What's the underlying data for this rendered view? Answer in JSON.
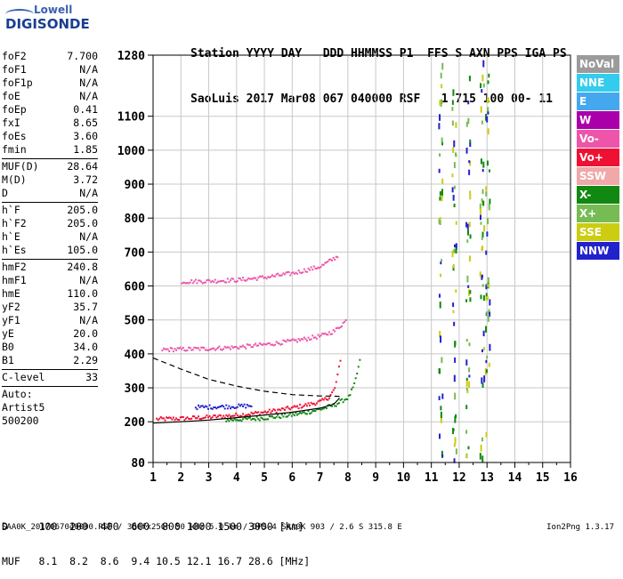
{
  "logo": {
    "line1": "Lowell",
    "line2": "DIGISONDE"
  },
  "header": {
    "line1": "Station YYYY DAY   DDD HHMMSS P1  FFS S AXN PPS IGA PS",
    "line2": "SaoLuis 2017 Mar08 067 040000 RSF   1 715 100 00- 11"
  },
  "params": {
    "group1": [
      {
        "label": "foF2",
        "value": "7.700"
      },
      {
        "label": "foF1",
        "value": "N/A"
      },
      {
        "label": "foF1p",
        "value": "N/A"
      },
      {
        "label": "foE",
        "value": "N/A"
      },
      {
        "label": "foEp",
        "value": "0.41"
      },
      {
        "label": "fxI",
        "value": "8.65"
      },
      {
        "label": "foEs",
        "value": "3.60"
      },
      {
        "label": "fmin",
        "value": "1.85"
      }
    ],
    "group2": [
      {
        "label": "MUF(D)",
        "value": "28.64"
      },
      {
        "label": "M(D)",
        "value": "3.72"
      },
      {
        "label": "D",
        "value": "N/A"
      }
    ],
    "group3": [
      {
        "label": "h`F",
        "value": "205.0"
      },
      {
        "label": "h`F2",
        "value": "205.0"
      },
      {
        "label": "h`E",
        "value": "N/A"
      },
      {
        "label": "h`Es",
        "value": "105.0"
      }
    ],
    "group4": [
      {
        "label": "hmF2",
        "value": "240.8"
      },
      {
        "label": "hmF1",
        "value": "N/A"
      },
      {
        "label": "hmE",
        "value": "110.0"
      },
      {
        "label": "yF2",
        "value": "35.7"
      },
      {
        "label": "yF1",
        "value": "N/A"
      },
      {
        "label": "yE",
        "value": "20.0"
      },
      {
        "label": "B0",
        "value": "34.0"
      },
      {
        "label": "B1",
        "value": "2.29"
      }
    ],
    "clevel": {
      "label": "C-level",
      "value": "33"
    },
    "auto": [
      "Auto:",
      "Artist5",
      "500200"
    ]
  },
  "muf_table": {
    "line1": "D     100  200  400  600  800 1000 1500 3000 [km]",
    "line2": "MUF   8.1  8.2  8.6  9.4 10.5 12.1 16.7 28.6 [MHz]"
  },
  "footer": {
    "left": "SAA0K_2017067040000.RSF / 300fx256h 50 kHz 5.0 km / DPS-4 SAA0K 903 / 2.6 S 315.8 E",
    "right": "Ion2Png 1.3.17"
  },
  "legend": [
    {
      "label": "NoVal",
      "color": "#9b9b9b"
    },
    {
      "label": "NNE",
      "color": "#33ccee"
    },
    {
      "label": "E",
      "color": "#44a8ee"
    },
    {
      "label": "W",
      "color": "#aa00aa"
    },
    {
      "label": "Vo-",
      "color": "#ee55aa"
    },
    {
      "label": "Vo+",
      "color": "#ee1133"
    },
    {
      "label": "SSW",
      "color": "#f0a8a8"
    },
    {
      "label": "X-",
      "color": "#118811"
    },
    {
      "label": "X+",
      "color": "#77bb55"
    },
    {
      "label": "SSE",
      "color": "#cccc11"
    },
    {
      "label": "NNW",
      "color": "#2222cc"
    }
  ],
  "chart_data": {
    "type": "scatter",
    "title": "",
    "xlabel": "",
    "ylabel": "",
    "xlim": [
      1,
      16
    ],
    "ylim": [
      80,
      1280
    ],
    "xticks": [
      1,
      2,
      3,
      4,
      5,
      6,
      7,
      8,
      9,
      10,
      11,
      12,
      13,
      14,
      15,
      16
    ],
    "yticks": [
      80,
      200,
      300,
      400,
      500,
      600,
      700,
      800,
      900,
      1000,
      1100,
      1280
    ],
    "grid": true,
    "traces": [
      {
        "name": "o-trace F layer",
        "color": "#ee1133",
        "x": [
          1.1,
          1.5,
          2,
          2.5,
          3,
          3.5,
          4,
          4.5,
          5,
          5.5,
          6,
          6.5,
          7,
          7.3,
          7.5,
          7.7
        ],
        "y": [
          210,
          211,
          212,
          214,
          216,
          219,
          222,
          226,
          231,
          237,
          244,
          252,
          262,
          275,
          300,
          380
        ]
      },
      {
        "name": "x-trace F layer",
        "color": "#118811",
        "x": [
          3.6,
          4,
          4.5,
          5,
          5.5,
          6,
          6.5,
          7,
          7.5,
          8,
          8.2,
          8.4
        ],
        "y": [
          208,
          209,
          211,
          214,
          218,
          223,
          230,
          240,
          252,
          275,
          310,
          380
        ]
      },
      {
        "name": "2nd hop",
        "color": "#ee55aa",
        "x": [
          1.3,
          2,
          3,
          4,
          5,
          6,
          7,
          7.5,
          7.9
        ],
        "y": [
          415,
          416,
          418,
          422,
          430,
          440,
          455,
          470,
          500
        ]
      },
      {
        "name": "3rd hop",
        "color": "#ee55aa",
        "x": [
          2,
          3,
          4,
          5,
          6,
          7,
          7.6
        ],
        "y": [
          615,
          617,
          620,
          628,
          640,
          660,
          690
        ]
      },
      {
        "name": "Es",
        "color": "#2222cc",
        "x": [
          2.5,
          3,
          3.5,
          4,
          4.5
        ],
        "y": [
          245,
          246,
          247,
          248,
          250
        ]
      }
    ],
    "profile_solid": {
      "x": [
        1,
        2,
        3,
        4,
        5,
        6,
        7,
        7.5,
        7.7
      ],
      "y": [
        196,
        200,
        205,
        212,
        220,
        228,
        240,
        252,
        270
      ]
    },
    "profile_dashed": {
      "x": [
        1,
        2,
        3,
        4,
        5,
        6,
        7,
        7.7
      ],
      "y": [
        388,
        355,
        325,
        305,
        290,
        280,
        276,
        275
      ]
    }
  }
}
